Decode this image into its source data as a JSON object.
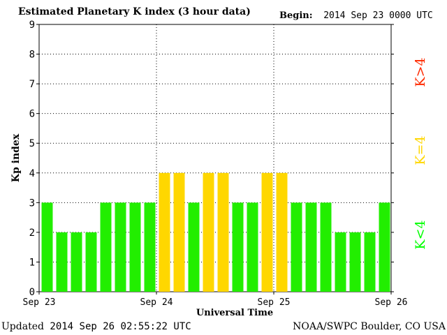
{
  "header": {
    "title": "Estimated Planetary K index (3 hour data)",
    "begin_label": "Begin:",
    "begin_value": "2014 Sep 23 0000 UTC"
  },
  "footer": {
    "updated_label": "Updated",
    "updated_value": "2014 Sep 26 02:55:22 UTC",
    "credit": "NOAA/SWPC Boulder, CO USA"
  },
  "legend": {
    "items": [
      {
        "label": "K<4",
        "color": "#00ff00"
      },
      {
        "label": "K=4",
        "color": "#ffd700"
      },
      {
        "label": "K>4",
        "color": "#ff2a00"
      }
    ]
  },
  "colors": {
    "below4": "#22ee00",
    "eq4": "#ffd700",
    "above4": "#ff2a00",
    "grid": "#000000"
  },
  "chart_data": {
    "type": "bar",
    "ylabel": "Kp index",
    "xlabel": "Universal Time",
    "ylim": [
      0,
      9
    ],
    "yticks": [
      0,
      1,
      2,
      3,
      4,
      5,
      6,
      7,
      8,
      9
    ],
    "xtick_labels": [
      "Sep 23",
      "Sep 24",
      "Sep 25",
      "Sep 26"
    ],
    "grid": true,
    "values": [
      3,
      2,
      2,
      2,
      3,
      3,
      3,
      3,
      4,
      4,
      3,
      4,
      4,
      3,
      3,
      4,
      4,
      3,
      3,
      3,
      2,
      2,
      2,
      3
    ]
  }
}
